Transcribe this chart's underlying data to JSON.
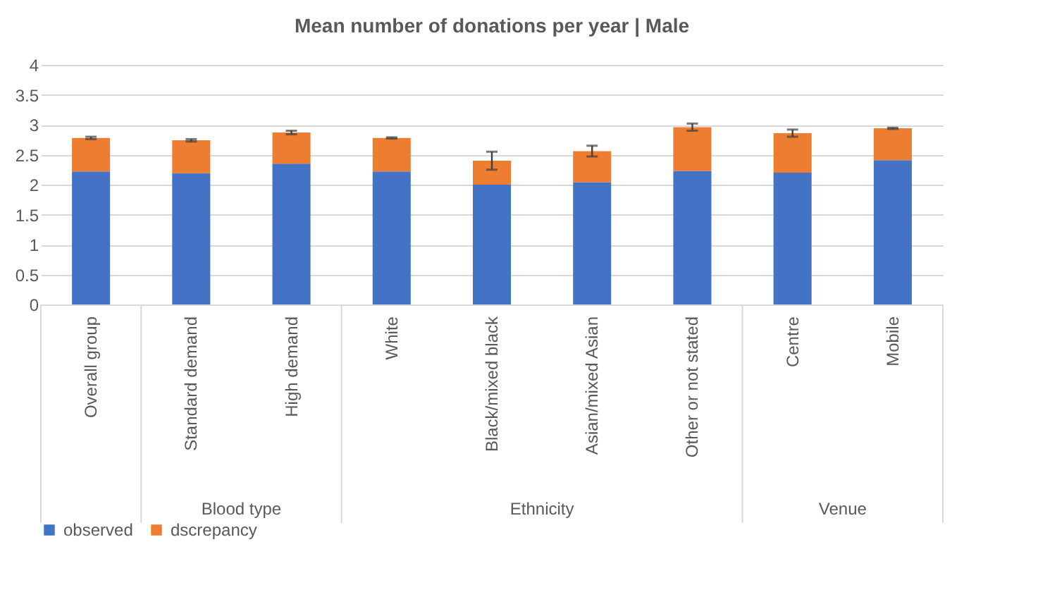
{
  "chart_data": {
    "type": "bar",
    "title": "Mean number of donations per year | Male",
    "stacked": true,
    "categories": [
      "Overall group",
      "Standard demand",
      "High demand",
      "White",
      "Black/mixed black",
      "Asian/mixed Asian",
      "Other or not stated",
      "Centre",
      "Mobile"
    ],
    "series": [
      {
        "name": "observed",
        "color": "#4472c4",
        "values": [
          2.22,
          2.19,
          2.35,
          2.22,
          2.0,
          2.04,
          2.23,
          2.2,
          2.41
        ]
      },
      {
        "name": "dscrepancy",
        "color": "#ed7d31",
        "values": [
          0.56,
          0.55,
          0.52,
          0.56,
          0.4,
          0.52,
          0.73,
          0.66,
          0.53
        ],
        "errors": [
          0.02,
          0.02,
          0.03,
          0.01,
          0.15,
          0.09,
          0.06,
          0.06,
          0.01
        ]
      }
    ],
    "annotations": [
      "Blood type",
      "Ethnicity",
      "Venue"
    ],
    "ylim": [
      0,
      4
    ],
    "yticks": [
      0,
      0.5,
      1,
      1.5,
      2,
      2.5,
      3,
      3.5,
      4
    ],
    "grid": "y",
    "legend": "bottom"
  }
}
